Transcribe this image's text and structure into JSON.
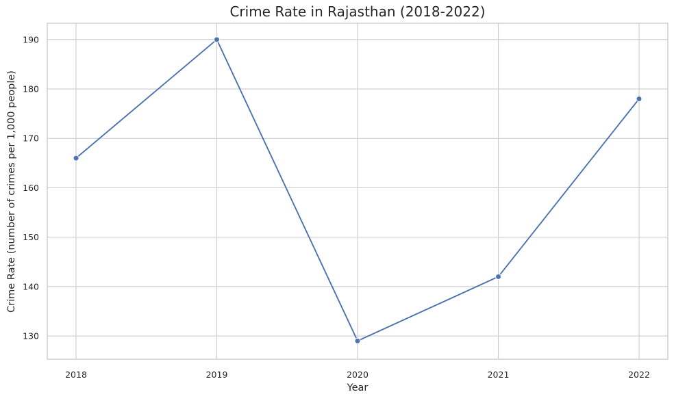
{
  "chart_data": {
    "type": "line",
    "title": "Crime Rate in Rajasthan (2018-2022)",
    "xlabel": "Year",
    "ylabel": "Crime Rate (number of crimes per 1,000 people)",
    "x": [
      "2018",
      "2019",
      "2020",
      "2021",
      "2022"
    ],
    "series": [
      {
        "values": [
          166,
          190,
          129,
          142,
          178
        ],
        "color": "#4c72b0",
        "marker": "circle"
      }
    ],
    "yticks": [
      130,
      140,
      150,
      160,
      170,
      180,
      190
    ],
    "ylim": [
      125.3,
      193.3
    ],
    "grid": true,
    "legend": "none"
  }
}
